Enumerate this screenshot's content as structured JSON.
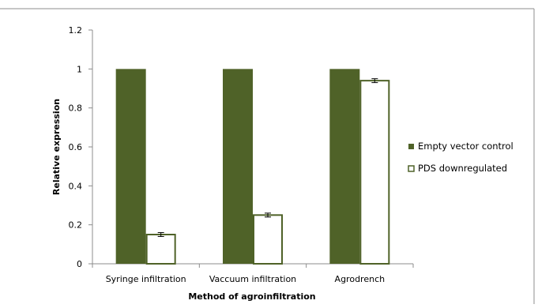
{
  "chart_data": {
    "type": "bar",
    "title": "",
    "xlabel": "Method of agroinfiltration",
    "ylabel": "Relative expression",
    "ylim": [
      0,
      1.2
    ],
    "yticks": [
      "0",
      "0.2",
      "0.4",
      "0.6",
      "0.8",
      "1",
      "1.2"
    ],
    "ytick_values": [
      0,
      0.2,
      0.4,
      0.6,
      0.8,
      1,
      1.2
    ],
    "categories": [
      "Syringe infiltration",
      "Vaccuum infiltration",
      "Agrodrench"
    ],
    "series": [
      {
        "name": "Empty vector control",
        "values": [
          1,
          1,
          1
        ],
        "errors": [
          0,
          0,
          0
        ],
        "style": "filled",
        "color": "#4f6228"
      },
      {
        "name": "PDS downregulated",
        "values": [
          0.15,
          0.25,
          0.94
        ],
        "errors": [
          0.01,
          0.01,
          0.01
        ],
        "style": "outline",
        "color": "#4f6228"
      }
    ],
    "legend_position": "right",
    "grid": false
  }
}
